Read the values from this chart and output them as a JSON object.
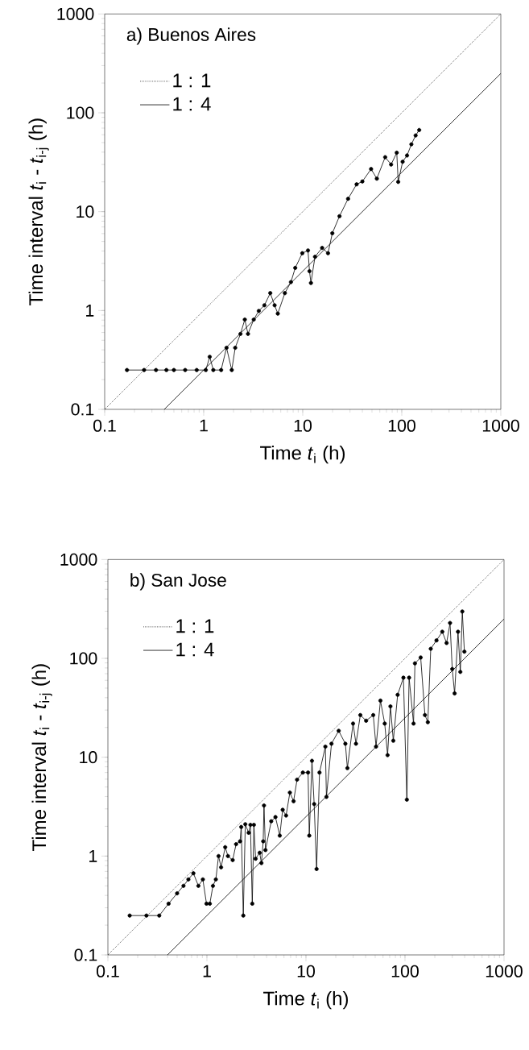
{
  "chart_data": [
    {
      "type": "line",
      "title": "a) Buenos Aires",
      "xlabel": "Time *t*$_{i}$ (h)",
      "ylabel": "Time interval *t*$_{i}$ - *t*$_{i-j}$ (h)",
      "log": "xy",
      "legend": "top left",
      "xlim": [
        0.1,
        1000
      ],
      "ylim": [
        0.1,
        1000
      ],
      "xticks": [
        0.1,
        1,
        10,
        100,
        1000
      ],
      "yticks": [
        0.1,
        1,
        10,
        100,
        1000
      ],
      "series": [
        {
          "color": "#000000",
          "marker": "circle",
          "line_style": "solid",
          "x": [
            0.168,
            0.25,
            0.33,
            0.42,
            0.5,
            0.65,
            0.85,
            1.05,
            1.15,
            1.25,
            1.5,
            1.7,
            1.92,
            2.08,
            2.35,
            2.6,
            2.8,
            3.2,
            3.6,
            4.1,
            4.7,
            5.2,
            5.6,
            6.6,
            7.6,
            8.4,
            9.9,
            11.3,
            11.7,
            12.1,
            13.3,
            15.7,
            18,
            19.9,
            23.5,
            28.7,
            35,
            40,
            49,
            56,
            68,
            78,
            89,
            92,
            102,
            113,
            125,
            138,
            150
          ],
          "values": [
            0.25,
            0.25,
            0.25,
            0.25,
            0.25,
            0.25,
            0.25,
            0.25,
            0.34,
            0.25,
            0.25,
            0.42,
            0.25,
            0.42,
            0.58,
            0.81,
            0.58,
            0.81,
            0.99,
            1.13,
            1.5,
            1.13,
            0.93,
            1.5,
            1.94,
            2.7,
            3.8,
            4.05,
            2.5,
            1.9,
            3.5,
            4.3,
            3.8,
            6.05,
            9.0,
            13.5,
            18.9,
            20.2,
            27,
            21.6,
            35.6,
            30,
            39.5,
            20,
            32,
            37,
            48,
            59,
            67
          ]
        },
        {
          "name": "1 : 1",
          "color": "#000000",
          "marker": "none",
          "line_style": "dotted",
          "x": [
            0.1,
            1000
          ],
          "values": [
            0.1,
            1000
          ]
        },
        {
          "name": "1 : 4",
          "color": "#000000",
          "marker": "none",
          "line_style": "solid",
          "x": [
            0.4,
            1000
          ],
          "values": [
            0.1,
            250
          ]
        }
      ]
    },
    {
      "type": "line",
      "title": "b) San Jose",
      "xlabel": "Time *t*$_{i}$ (h)",
      "ylabel": "Time interval *t*$_{i}$ - *t*$_{i-j}$ (h)",
      "log": "xy",
      "legend": "top left",
      "xlim": [
        0.1,
        1000
      ],
      "ylim": [
        0.1,
        1000
      ],
      "xticks": [
        0.1,
        1,
        10,
        100,
        1000
      ],
      "yticks": [
        0.1,
        1,
        10,
        100,
        1000
      ],
      "series": [
        {
          "color": "#000000",
          "marker": "circle",
          "line_style": "solid",
          "x": [
            0.166,
            0.245,
            0.33,
            0.41,
            0.5,
            0.58,
            0.65,
            0.73,
            0.82,
            0.91,
            0.99,
            1.07,
            1.15,
            1.23,
            1.31,
            1.39,
            1.53,
            1.63,
            1.82,
            1.97,
            2.16,
            2.22,
            2.33,
            2.44,
            2.64,
            2.75,
            2.87,
            2.98,
            3.1,
            3.41,
            3.55,
            3.7,
            3.77,
            3.9,
            4.46,
            4.92,
            5.44,
            5.82,
            6.3,
            6.88,
            7.5,
            8.13,
            9.3,
            10.5,
            10.8,
            11.5,
            12.1,
            12.8,
            13.7,
            15.7,
            16.1,
            18.1,
            21.4,
            25,
            26.2,
            29.9,
            32,
            35.4,
            40.5,
            47.8,
            51,
            56.5,
            62.4,
            66.7,
            71.3,
            76.2,
            84.3,
            96.4,
            104.4,
            110,
            122,
            126,
            144,
            159,
            170,
            182,
            208,
            238,
            263,
            285,
            300,
            317,
            343,
            362,
            379,
            398
          ],
          "values": [
            0.25,
            0.25,
            0.25,
            0.33,
            0.42,
            0.5,
            0.58,
            0.67,
            0.5,
            0.58,
            0.33,
            0.33,
            0.5,
            0.58,
            1.0,
            0.77,
            1.23,
            1.0,
            0.91,
            1.32,
            1.41,
            1.97,
            0.25,
            2.1,
            1.72,
            2.07,
            0.33,
            2.07,
            0.94,
            1.08,
            0.85,
            1.41,
            3.25,
            1.15,
            2.25,
            2.48,
            1.61,
            2.94,
            2.57,
            4.39,
            3.59,
            5.93,
            7.0,
            7.0,
            1.61,
            9.2,
            3.36,
            0.74,
            7.0,
            12.8,
            3.97,
            13.7,
            18.5,
            13.7,
            7.76,
            21.9,
            13.7,
            26.7,
            23.4,
            26.7,
            12.8,
            37.4,
            21.9,
            10.5,
            32.7,
            14.7,
            42.8,
            63.8,
            3.72,
            63.8,
            21.9,
            89,
            102,
            26.7,
            22.6,
            125,
            152,
            186,
            143,
            228,
            78,
            44.2,
            186,
            73,
            298,
            117
          ]
        },
        {
          "name": "1 : 1",
          "color": "#000000",
          "marker": "none",
          "line_style": "dotted",
          "x": [
            0.1,
            1000
          ],
          "values": [
            0.1,
            1000
          ]
        },
        {
          "name": "1 : 4",
          "color": "#000000",
          "marker": "none",
          "line_style": "solid",
          "x": [
            0.4,
            1000
          ],
          "values": [
            0.1,
            250
          ]
        }
      ]
    }
  ]
}
